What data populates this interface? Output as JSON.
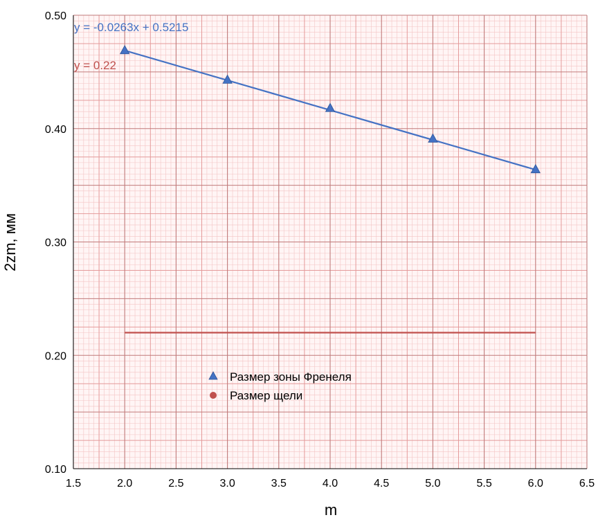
{
  "chart_data": {
    "type": "scatter",
    "title": "",
    "xlabel": "m",
    "ylabel": "2zm, мм",
    "xlim": [
      1.5,
      6.5
    ],
    "ylim": [
      0.1,
      0.5
    ],
    "x_ticks": [
      "1.5",
      "2.0",
      "2.5",
      "3.0",
      "3.5",
      "4.0",
      "4.5",
      "5.0",
      "5.5",
      "6.0",
      "6.5"
    ],
    "y_ticks": [
      "0.10",
      "0.20",
      "0.30",
      "0.40",
      "0.50"
    ],
    "grid": true,
    "legend_position": "center-left",
    "series": [
      {
        "name": "Размер зоны Френеля",
        "marker": "triangle",
        "color": "#4472c4",
        "x": [
          2.0,
          3.0,
          4.0,
          5.0,
          6.0
        ],
        "y": [
          0.469,
          0.443,
          0.418,
          0.391,
          0.364
        ],
        "trendline": {
          "x": [
            2.0,
            6.0
          ],
          "equation": "y = -0.0263x + 0.5215",
          "slope": -0.0263,
          "intercept": 0.5215
        }
      },
      {
        "name": "Размер щели",
        "marker": "circle",
        "color": "#c0504d",
        "x": [],
        "y": [],
        "trendline": {
          "x": [
            2.0,
            6.0
          ],
          "equation": "y = 0.22",
          "slope": 0,
          "intercept": 0.22
        }
      }
    ]
  }
}
